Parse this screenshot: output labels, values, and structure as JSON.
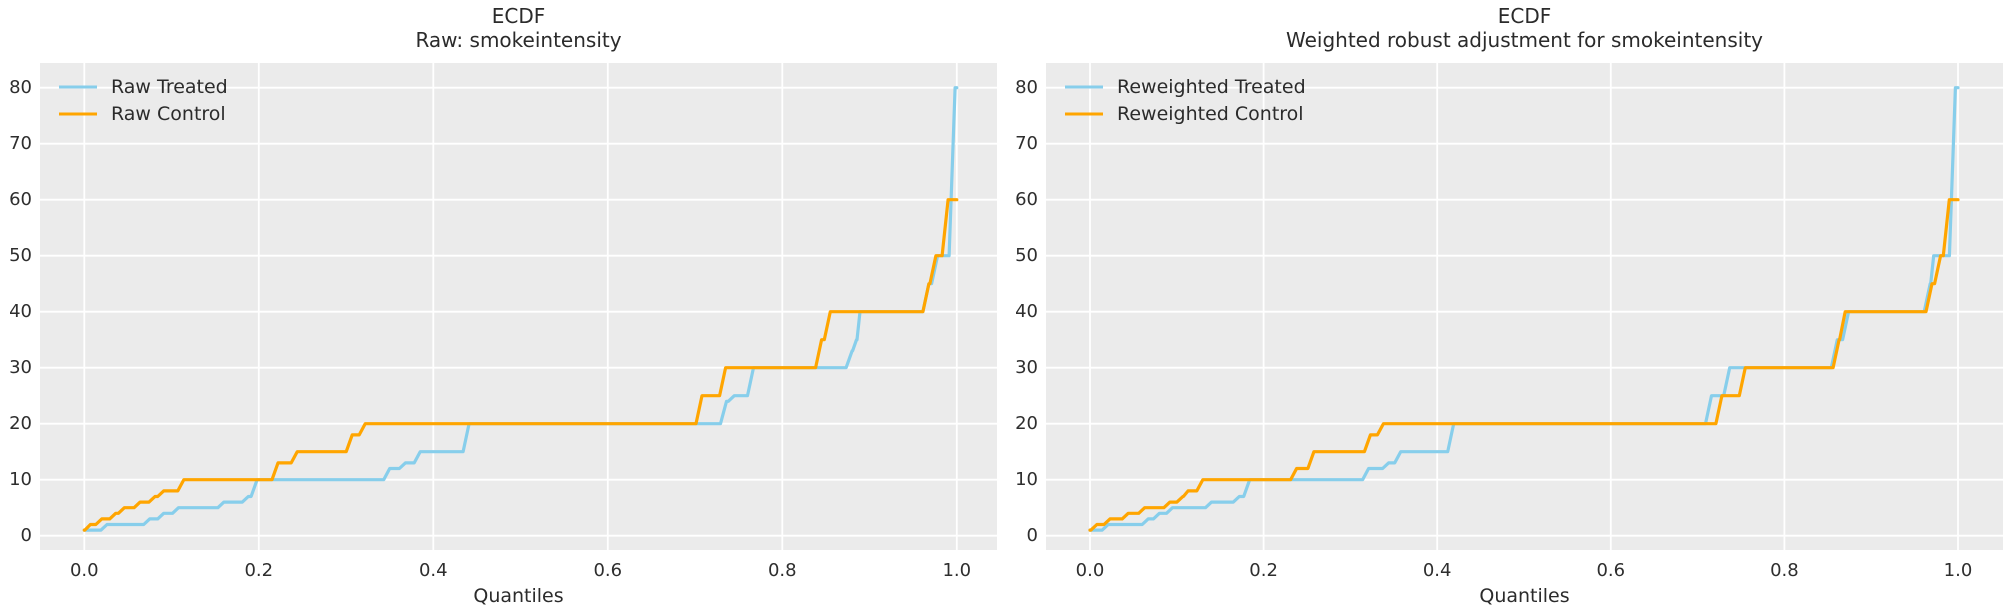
{
  "figure": {
    "background": "#ffffff",
    "plot_background": "#ebebeb",
    "grid_color": "#ffffff",
    "treated_color": "#87CEEB",
    "control_color": "#FFA500"
  },
  "chart_data": [
    {
      "type": "line",
      "variant": "ecdf-quantile-step",
      "title_line1": "ECDF",
      "title_line2": "Raw: smokeintensity",
      "xlabel": "Quantiles",
      "x_ticks": [
        "0.0",
        "0.2",
        "0.4",
        "0.6",
        "0.8",
        "1.0"
      ],
      "x_tick_values": [
        0,
        0.2,
        0.4,
        0.6,
        0.8,
        1.0
      ],
      "y_ticks": [
        "0",
        "10",
        "20",
        "30",
        "40",
        "50",
        "60",
        "70",
        "80"
      ],
      "y_tick_values": [
        0,
        10,
        20,
        30,
        40,
        50,
        60,
        70,
        80
      ],
      "xlim": [
        -0.05,
        1.05
      ],
      "ylim": [
        -2.95,
        83.95
      ],
      "grid": true,
      "legend_position": "upper left",
      "series": [
        {
          "name": "Raw Treated",
          "color": "#87CEEB",
          "steps": [
            [
              0.0,
              1
            ],
            [
              0.026,
              2
            ],
            [
              0.075,
              3
            ],
            [
              0.091,
              4
            ],
            [
              0.108,
              5
            ],
            [
              0.16,
              6
            ],
            [
              0.188,
              7
            ],
            [
              0.198,
              10
            ],
            [
              0.35,
              12
            ],
            [
              0.368,
              13
            ],
            [
              0.385,
              15
            ],
            [
              0.441,
              20
            ],
            [
              0.736,
              24
            ],
            [
              0.745,
              25
            ],
            [
              0.767,
              30
            ],
            [
              0.88,
              33
            ],
            [
              0.885,
              35
            ],
            [
              0.889,
              40
            ],
            [
              0.968,
              45
            ],
            [
              0.978,
              50
            ],
            [
              0.998,
              80
            ],
            [
              1.0,
              80
            ]
          ]
        },
        {
          "name": "Raw Control",
          "color": "#FFA500",
          "steps": [
            [
              0.0,
              1
            ],
            [
              0.007,
              2
            ],
            [
              0.02,
              3
            ],
            [
              0.036,
              4
            ],
            [
              0.046,
              5
            ],
            [
              0.064,
              6
            ],
            [
              0.081,
              7
            ],
            [
              0.091,
              8
            ],
            [
              0.114,
              10
            ],
            [
              0.222,
              13
            ],
            [
              0.244,
              15
            ],
            [
              0.307,
              18
            ],
            [
              0.322,
              20
            ],
            [
              0.708,
              25
            ],
            [
              0.735,
              30
            ],
            [
              0.845,
              35
            ],
            [
              0.855,
              40
            ],
            [
              0.968,
              45
            ],
            [
              0.976,
              50
            ],
            [
              0.99,
              60
            ],
            [
              1.0,
              60
            ]
          ]
        }
      ]
    },
    {
      "type": "line",
      "variant": "ecdf-quantile-step",
      "title_line1": "ECDF",
      "title_line2": "Weighted robust adjustment for smokeintensity",
      "xlabel": "Quantiles",
      "x_ticks": [
        "0.0",
        "0.2",
        "0.4",
        "0.6",
        "0.8",
        "1.0"
      ],
      "x_tick_values": [
        0,
        0.2,
        0.4,
        0.6,
        0.8,
        1.0
      ],
      "y_ticks": [
        "0",
        "10",
        "20",
        "30",
        "40",
        "50",
        "60",
        "70",
        "80"
      ],
      "y_tick_values": [
        0,
        10,
        20,
        30,
        40,
        50,
        60,
        70,
        80
      ],
      "xlim": [
        -0.05,
        1.05
      ],
      "ylim": [
        -2.95,
        83.95
      ],
      "grid": true,
      "legend_position": "upper left",
      "series": [
        {
          "name": "Reweighted Treated",
          "color": "#87CEEB",
          "steps": [
            [
              0.0,
              1
            ],
            [
              0.021,
              2
            ],
            [
              0.067,
              3
            ],
            [
              0.08,
              4
            ],
            [
              0.095,
              5
            ],
            [
              0.14,
              6
            ],
            [
              0.172,
              7
            ],
            [
              0.184,
              10
            ],
            [
              0.321,
              12
            ],
            [
              0.344,
              13
            ],
            [
              0.358,
              15
            ],
            [
              0.419,
              20
            ],
            [
              0.716,
              25
            ],
            [
              0.737,
              30
            ],
            [
              0.861,
              35
            ],
            [
              0.874,
              40
            ],
            [
              0.968,
              45
            ],
            [
              0.972,
              50
            ],
            [
              0.997,
              80
            ],
            [
              1.0,
              80
            ]
          ]
        },
        {
          "name": "Reweighted Control",
          "color": "#FFA500",
          "steps": [
            [
              0.0,
              1
            ],
            [
              0.008,
              2
            ],
            [
              0.023,
              3
            ],
            [
              0.044,
              4
            ],
            [
              0.063,
              5
            ],
            [
              0.092,
              6
            ],
            [
              0.107,
              7
            ],
            [
              0.113,
              8
            ],
            [
              0.13,
              10
            ],
            [
              0.238,
              12
            ],
            [
              0.258,
              15
            ],
            [
              0.323,
              18
            ],
            [
              0.338,
              20
            ],
            [
              0.728,
              25
            ],
            [
              0.755,
              30
            ],
            [
              0.863,
              35
            ],
            [
              0.87,
              40
            ],
            [
              0.97,
              45
            ],
            [
              0.98,
              50
            ],
            [
              0.99,
              60
            ],
            [
              1.0,
              60
            ]
          ]
        }
      ]
    }
  ]
}
